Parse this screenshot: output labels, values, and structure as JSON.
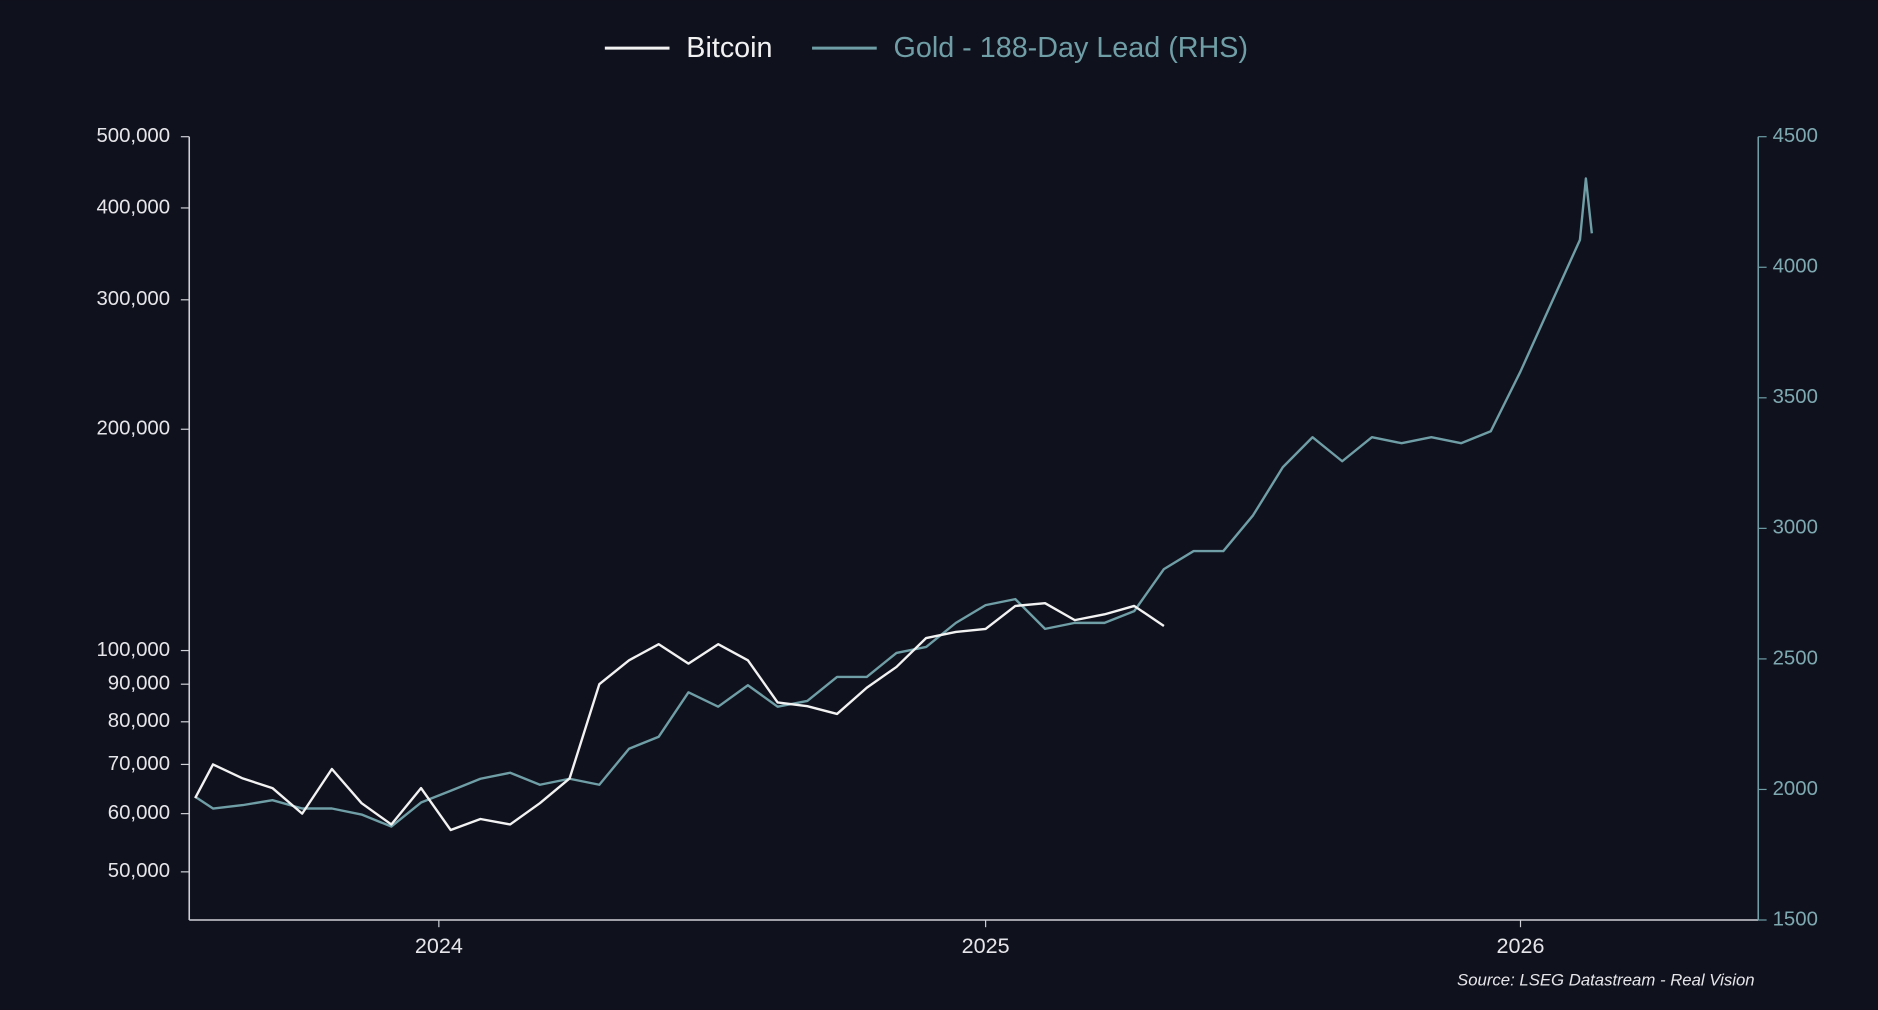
{
  "chart_data": {
    "type": "line",
    "legend_position": "top",
    "source": "Source: LSEG Datastream - Real Vision",
    "x": [
      2024.17,
      2024.2,
      2024.25,
      2024.3,
      2024.35,
      2024.4,
      2024.45,
      2024.5,
      2024.55,
      2024.6,
      2024.65,
      2024.7,
      2024.75,
      2024.8,
      2024.85,
      2024.9,
      2024.95,
      2025.0,
      2025.05,
      2025.1,
      2025.15,
      2025.2,
      2025.25,
      2025.3,
      2025.35,
      2025.4,
      2025.45,
      2025.5,
      2025.55,
      2025.6,
      2025.65,
      2025.7,
      2025.75,
      2025.8,
      2025.85,
      2025.9,
      2025.95,
      2026.0,
      2026.05,
      2026.1,
      2026.15,
      2026.2,
      2026.25,
      2026.3,
      2026.35,
      2026.4,
      2026.45,
      2026.5,
      2026.51,
      2026.52
    ],
    "xlim": [
      2024.16,
      2026.8
    ],
    "xticks": [
      {
        "value": 2024.58,
        "label": "2024"
      },
      {
        "value": 2025.5,
        "label": "2025"
      },
      {
        "value": 2026.4,
        "label": "2026"
      }
    ],
    "y_scale": "log",
    "ylim": [
      43000,
      500000
    ],
    "yticks": [
      {
        "value": 50000,
        "label": "50,000"
      },
      {
        "value": 60000,
        "label": "60,000"
      },
      {
        "value": 70000,
        "label": "70,000"
      },
      {
        "value": 80000,
        "label": "80,000"
      },
      {
        "value": 90000,
        "label": "90,000"
      },
      {
        "value": 100000,
        "label": "100,000"
      },
      {
        "value": 200000,
        "label": "200,000"
      },
      {
        "value": 300000,
        "label": "300,000"
      },
      {
        "value": 400000,
        "label": "400,000"
      },
      {
        "value": 500000,
        "label": "500,000"
      }
    ],
    "y2lim": [
      1500,
      4500
    ],
    "y2ticks": [
      1500,
      2000,
      2500,
      3000,
      3500,
      4000,
      4500
    ],
    "series": [
      {
        "name": "Bitcoin",
        "color": "#f2f2f2",
        "axis": "y",
        "values": [
          63000,
          70000,
          67000,
          65000,
          60000,
          69000,
          62000,
          58000,
          65000,
          57000,
          59000,
          58000,
          62000,
          67000,
          90000,
          97000,
          102000,
          96000,
          102000,
          97000,
          85000,
          84000,
          82000,
          89000,
          95000,
          104000,
          106000,
          107000,
          115000,
          116000,
          110000,
          112000,
          115000,
          108000,
          null,
          null,
          null,
          null,
          null,
          null,
          null,
          null,
          null,
          null,
          null,
          null,
          null,
          null,
          null,
          null
        ]
      },
      {
        "name": "Gold - 188-Day Lead (RHS)",
        "color": "#6f9ea6",
        "axis": "y2",
        "values": [
          1972,
          1927,
          1940,
          1959,
          1927,
          1927,
          1904,
          1858,
          1950,
          1995,
          2041,
          2064,
          2018,
          2041,
          2018,
          2156,
          2202,
          2372,
          2317,
          2399,
          2317,
          2339,
          2431,
          2431,
          2523,
          2546,
          2638,
          2706,
          2729,
          2615,
          2638,
          2638,
          2683,
          2844,
          2913,
          2913,
          3050,
          3234,
          3349,
          3257,
          3349,
          3326,
          3349,
          3326,
          3372,
          3601,
          3853,
          4105,
          4340,
          4130
        ]
      }
    ]
  }
}
